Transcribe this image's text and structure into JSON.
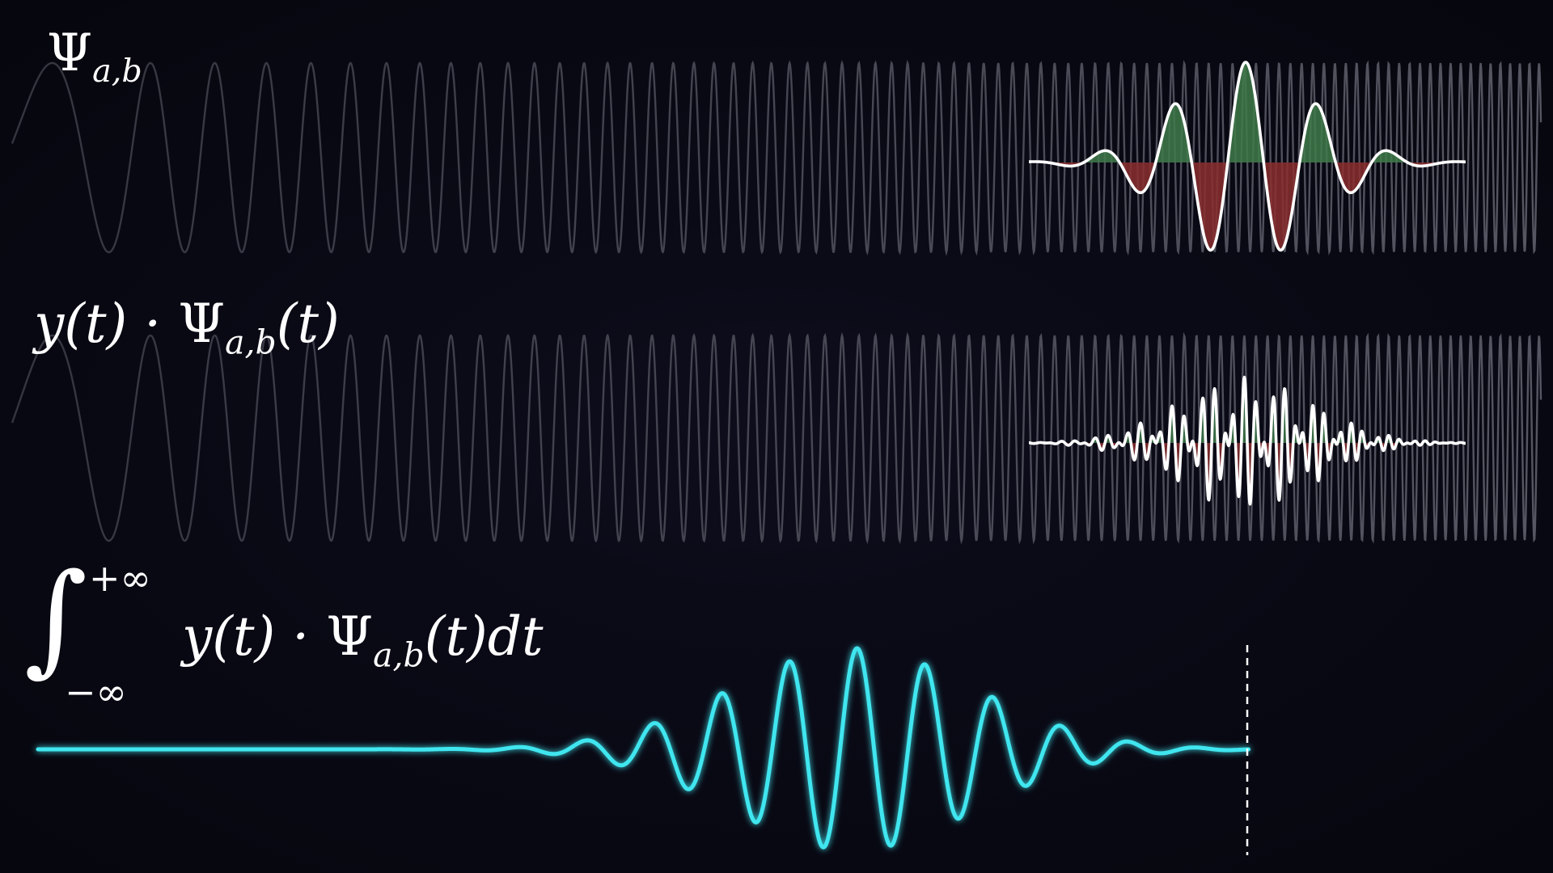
{
  "labels": {
    "psi_symbol": "Ψ",
    "psi_subscript": "a,b",
    "product_prefix": "y(t) · ",
    "product_symbol": "Ψ",
    "product_subscript": "a,b",
    "product_suffix": "(t)",
    "integral_symbol": "∫",
    "integral_upper": "+∞",
    "integral_lower": "−∞",
    "integrand_prefix": "y(t) · ",
    "integrand_symbol": "Ψ",
    "integrand_subscript": "a,b",
    "integrand_suffix": "(t)dt"
  },
  "colors": {
    "background": "#080812",
    "chirp": "#5a5a66",
    "wavelet": "#ffffff",
    "positive_fill": "#3f7a4a",
    "negative_fill": "#8a2e2e",
    "result": "#3fe6ef",
    "marker": "#ffffff"
  }
}
